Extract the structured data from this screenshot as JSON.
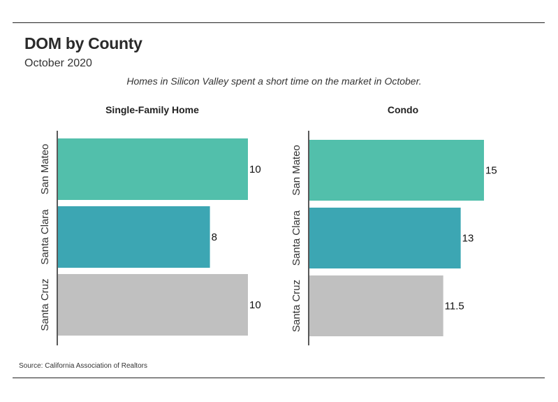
{
  "header": {
    "title": "DOM by County",
    "subtitle": "October 2020",
    "note": "Homes in Silicon Valley spent a short time on the market in October."
  },
  "footer": {
    "source": "Source:  California Association of Realtors"
  },
  "colors": {
    "San Mateo": "#52bfab",
    "Santa Clara": "#3ca6b3",
    "Santa Cruz": "#c0c0c0",
    "axis": "#222222"
  },
  "chart_data": [
    {
      "type": "bar",
      "orientation": "horizontal",
      "title": "Single-Family Home",
      "categories": [
        "San Mateo",
        "Santa Clara",
        "Santa Cruz"
      ],
      "values": [
        10,
        8,
        10
      ],
      "value_labels": [
        "10",
        "8",
        "10"
      ],
      "xlim": [
        0,
        10
      ]
    },
    {
      "type": "bar",
      "orientation": "horizontal",
      "title": "Condo",
      "categories": [
        "San Mateo",
        "Santa Clara",
        "Santa Cruz"
      ],
      "values": [
        15,
        13,
        11.5
      ],
      "value_labels": [
        "15",
        "13",
        "11.5"
      ],
      "xlim": [
        0,
        15
      ]
    }
  ]
}
